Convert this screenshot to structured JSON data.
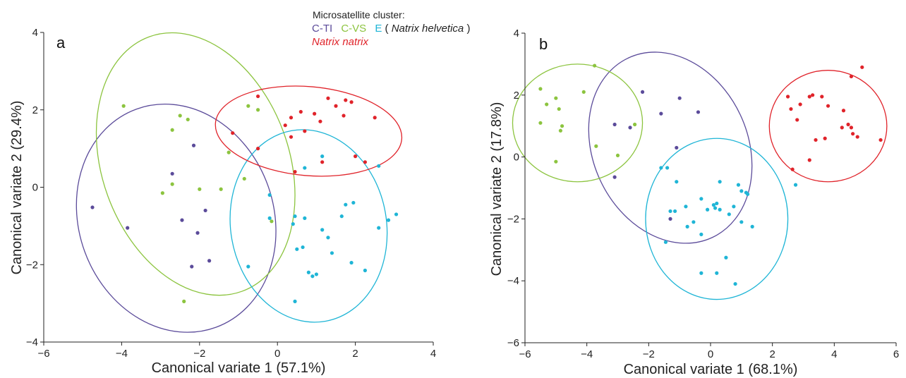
{
  "legend": {
    "title": "Microsatellite cluster:",
    "ti": "C-TI",
    "vs": "C-VS",
    "e": "E",
    "helvetica_open": " (",
    "helvetica_species": "Natrix helvetica",
    "helvetica_close": ")",
    "natrix": "Natrix natrix"
  },
  "colors": {
    "C-TI": "#5b4b9a",
    "C-VS": "#8cc43f",
    "E": "#1fb5d6",
    "Natrix natrix": "#e0232a"
  },
  "chart_data": [
    {
      "panel": "a",
      "type": "scatter",
      "xlabel": "Canonical variate 1 (57.1%)",
      "ylabel": "Canonical variate 2 (29.4%)",
      "xlim": [
        -6,
        4
      ],
      "ylim": [
        -4,
        4
      ],
      "xticks": [
        -6,
        -4,
        -2,
        0,
        2,
        4
      ],
      "yticks": [
        -4,
        -2,
        0,
        2,
        4
      ],
      "xtick_labels": [
        "−6",
        "−4",
        "−2",
        "0",
        "2",
        "4"
      ],
      "ytick_labels": [
        "−4",
        "−2",
        "0",
        "2",
        "4"
      ],
      "series": [
        {
          "name": "C-TI",
          "ellipse": {
            "cx": -2.6,
            "cy": -0.8,
            "rx": 2.5,
            "ry": 3.0,
            "angle": 20
          },
          "points": [
            [
              -4.75,
              -0.52
            ],
            [
              -3.85,
              -1.05
            ],
            [
              -2.7,
              0.35
            ],
            [
              -2.15,
              1.08
            ],
            [
              -2.45,
              -0.85
            ],
            [
              -2.05,
              -1.18
            ],
            [
              -1.85,
              -0.6
            ],
            [
              -2.2,
              -2.05
            ],
            [
              -1.75,
              -1.9
            ]
          ]
        },
        {
          "name": "C-VS",
          "ellipse": {
            "cx": -2.1,
            "cy": 0.6,
            "rx": 2.4,
            "ry": 3.5,
            "angle": 20
          },
          "points": [
            [
              -3.95,
              2.1
            ],
            [
              -2.5,
              1.85
            ],
            [
              -2.3,
              1.75
            ],
            [
              -2.7,
              1.48
            ],
            [
              -1.25,
              0.9
            ],
            [
              -2.7,
              0.08
            ],
            [
              -2.95,
              -0.15
            ],
            [
              -2.0,
              -0.05
            ],
            [
              -1.45,
              -0.05
            ],
            [
              -0.85,
              0.22
            ],
            [
              -0.75,
              2.1
            ],
            [
              -0.5,
              2.0
            ],
            [
              -0.15,
              -0.88
            ],
            [
              -2.4,
              -2.95
            ]
          ]
        },
        {
          "name": "E",
          "ellipse": {
            "cx": 0.8,
            "cy": -1.0,
            "rx": 2.0,
            "ry": 2.5,
            "angle": 10
          },
          "points": [
            [
              0.7,
              0.5
            ],
            [
              1.15,
              0.8
            ],
            [
              2.6,
              0.55
            ],
            [
              -0.2,
              -0.2
            ],
            [
              -0.2,
              -0.8
            ],
            [
              0.45,
              -0.75
            ],
            [
              0.4,
              -0.95
            ],
            [
              0.7,
              -0.8
            ],
            [
              1.15,
              -1.1
            ],
            [
              1.3,
              -1.3
            ],
            [
              1.65,
              -0.75
            ],
            [
              1.75,
              -0.45
            ],
            [
              1.95,
              -0.4
            ],
            [
              2.6,
              -1.05
            ],
            [
              2.85,
              -0.85
            ],
            [
              3.05,
              -0.7
            ],
            [
              0.5,
              -1.6
            ],
            [
              0.65,
              -1.55
            ],
            [
              1.4,
              -1.7
            ],
            [
              -0.75,
              -2.05
            ],
            [
              0.8,
              -2.2
            ],
            [
              0.9,
              -2.3
            ],
            [
              1.0,
              -2.25
            ],
            [
              1.9,
              -1.95
            ],
            [
              2.25,
              -2.15
            ],
            [
              0.45,
              -2.95
            ]
          ]
        },
        {
          "name": "Natrix natrix",
          "ellipse": {
            "cx": 0.8,
            "cy": 1.45,
            "rx": 2.4,
            "ry": 1.15,
            "angle": -5
          },
          "points": [
            [
              -1.15,
              1.4
            ],
            [
              -0.5,
              2.35
            ],
            [
              -0.5,
              1.0
            ],
            [
              0.2,
              1.6
            ],
            [
              0.35,
              1.3
            ],
            [
              0.35,
              1.8
            ],
            [
              0.6,
              1.95
            ],
            [
              0.7,
              1.45
            ],
            [
              0.95,
              1.9
            ],
            [
              1.1,
              1.7
            ],
            [
              1.3,
              2.3
            ],
            [
              1.5,
              2.1
            ],
            [
              1.75,
              2.25
            ],
            [
              1.9,
              2.2
            ],
            [
              1.7,
              1.85
            ],
            [
              2.5,
              1.8
            ],
            [
              1.15,
              0.65
            ],
            [
              2.0,
              0.8
            ],
            [
              2.25,
              0.65
            ],
            [
              0.45,
              0.4
            ]
          ]
        }
      ]
    },
    {
      "panel": "b",
      "type": "scatter",
      "xlabel": "Canonical variate 1 (68.1%)",
      "ylabel": "Canonical variate 2 (17.8%)",
      "xlim": [
        -6,
        6
      ],
      "ylim": [
        -6,
        4
      ],
      "xticks": [
        -6,
        -4,
        -2,
        0,
        2,
        4,
        6
      ],
      "yticks": [
        -6,
        -4,
        -2,
        0,
        2,
        4
      ],
      "xtick_labels": [
        "−6",
        "−4",
        "−2",
        "0",
        "2",
        "4",
        "6"
      ],
      "ytick_labels": [
        "−6",
        "−4",
        "−2",
        "0",
        "2",
        "4"
      ],
      "series": [
        {
          "name": "C-TI",
          "ellipse": {
            "cx": -1.3,
            "cy": 0.3,
            "rx": 2.5,
            "ry": 3.2,
            "angle": 25
          },
          "points": [
            [
              -2.2,
              2.1
            ],
            [
              -1.0,
              1.9
            ],
            [
              -1.6,
              1.4
            ],
            [
              -0.4,
              1.45
            ],
            [
              -2.6,
              0.95
            ],
            [
              -3.1,
              1.05
            ],
            [
              -3.1,
              -0.65
            ],
            [
              -1.1,
              0.3
            ],
            [
              -1.3,
              -2.0
            ]
          ]
        },
        {
          "name": "C-VS",
          "ellipse": {
            "cx": -4.3,
            "cy": 1.1,
            "rx": 2.1,
            "ry": 1.9,
            "angle": 0
          },
          "points": [
            [
              -3.75,
              2.95
            ],
            [
              -5.5,
              2.2
            ],
            [
              -5.0,
              1.9
            ],
            [
              -5.3,
              1.7
            ],
            [
              -4.9,
              1.55
            ],
            [
              -5.5,
              1.1
            ],
            [
              -4.8,
              1.0
            ],
            [
              -4.85,
              0.85
            ],
            [
              -4.1,
              2.1
            ],
            [
              -3.7,
              0.35
            ],
            [
              -3.0,
              0.05
            ],
            [
              -5.0,
              -0.15
            ],
            [
              -2.45,
              1.05
            ]
          ]
        },
        {
          "name": "E",
          "ellipse": {
            "cx": 0.2,
            "cy": -2.0,
            "rx": 2.3,
            "ry": 2.6,
            "angle": 0
          },
          "points": [
            [
              -1.6,
              -0.35
            ],
            [
              -1.4,
              -0.35
            ],
            [
              -1.1,
              -0.8
            ],
            [
              0.3,
              -0.8
            ],
            [
              0.9,
              -0.9
            ],
            [
              -0.8,
              -1.6
            ],
            [
              -0.3,
              -1.35
            ],
            [
              -1.3,
              -1.75
            ],
            [
              -1.15,
              -1.75
            ],
            [
              0.1,
              -1.55
            ],
            [
              0.2,
              -1.5
            ],
            [
              -0.1,
              -1.7
            ],
            [
              0.15,
              -1.65
            ],
            [
              0.3,
              -1.7
            ],
            [
              0.6,
              -1.85
            ],
            [
              0.75,
              -1.6
            ],
            [
              1.0,
              -1.1
            ],
            [
              1.15,
              -1.15
            ],
            [
              1.2,
              -1.2
            ],
            [
              -0.75,
              -2.25
            ],
            [
              -0.55,
              -2.1
            ],
            [
              -0.3,
              -2.5
            ],
            [
              1.0,
              -2.1
            ],
            [
              1.35,
              -2.25
            ],
            [
              -1.45,
              -2.75
            ],
            [
              0.5,
              -3.25
            ],
            [
              -0.3,
              -3.75
            ],
            [
              0.2,
              -3.75
            ],
            [
              0.8,
              -4.1
            ],
            [
              2.75,
              -0.9
            ]
          ]
        },
        {
          "name": "Natrix natrix",
          "ellipse": {
            "cx": 3.8,
            "cy": 1.0,
            "rx": 1.9,
            "ry": 1.8,
            "angle": 0
          },
          "points": [
            [
              2.5,
              1.95
            ],
            [
              2.6,
              1.55
            ],
            [
              2.8,
              1.2
            ],
            [
              2.9,
              1.7
            ],
            [
              3.2,
              1.95
            ],
            [
              3.3,
              2.0
            ],
            [
              3.6,
              1.95
            ],
            [
              3.8,
              1.65
            ],
            [
              4.3,
              1.5
            ],
            [
              4.55,
              2.6
            ],
            [
              4.9,
              2.9
            ],
            [
              4.25,
              0.95
            ],
            [
              4.45,
              1.05
            ],
            [
              4.6,
              0.75
            ],
            [
              4.75,
              0.65
            ],
            [
              4.55,
              0.95
            ],
            [
              3.7,
              0.6
            ],
            [
              3.4,
              0.55
            ],
            [
              3.2,
              -0.1
            ],
            [
              2.65,
              -0.4
            ],
            [
              5.5,
              0.55
            ]
          ]
        }
      ]
    }
  ]
}
